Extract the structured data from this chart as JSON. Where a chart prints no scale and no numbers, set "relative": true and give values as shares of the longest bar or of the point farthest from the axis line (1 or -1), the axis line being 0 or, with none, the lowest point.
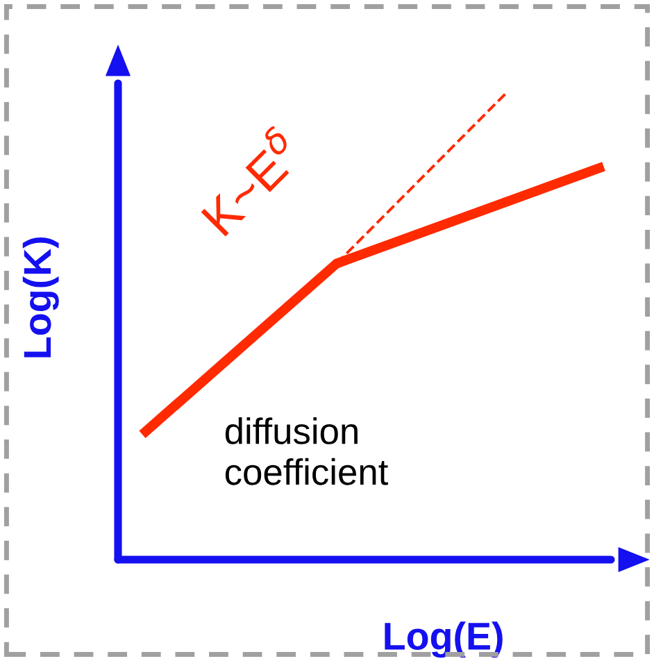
{
  "chart_data": {
    "type": "line",
    "relative": true,
    "xlabel": "Log(E)",
    "ylabel": "Log(K)",
    "marker": "none",
    "categories": [
      null,
      null,
      null,
      null,
      null,
      null,
      null,
      null,
      null,
      null,
      null,
      null,
      null,
      null,
      null,
      null,
      null,
      null,
      null,
      null,
      null
    ],
    "series": [
      {
        "color": "#ff2a00",
        "values": [
          null,
          0.268,
          null,
          null,
          null,
          null,
          null,
          null,
          null,
          0.634,
          null,
          null,
          null,
          null,
          null,
          null,
          null,
          null,
          null,
          null,
          0.842
        ],
        "line_style": "solid"
      },
      {
        "color": "#ff2a00",
        "values": [
          null,
          null,
          null,
          null,
          null,
          null,
          null,
          null,
          null,
          0.634,
          null,
          null,
          null,
          null,
          null,
          null,
          1.0,
          null,
          null,
          null,
          null
        ],
        "line_style": "dashed"
      }
    ],
    "annotations": [
      "K~E$^{δ}$",
      "diffusion\ncoefficient"
    ]
  }
}
